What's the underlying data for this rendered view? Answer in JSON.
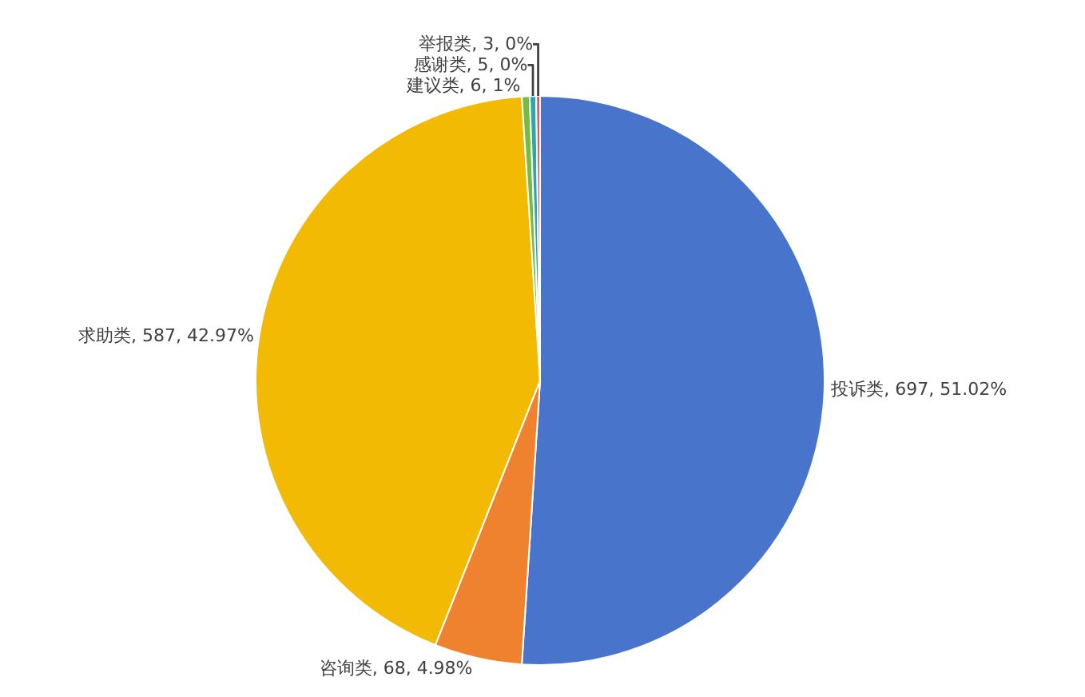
{
  "chart_data": {
    "type": "pie",
    "categories": [
      "投诉类",
      "咨询类",
      "求助类",
      "建议类",
      "感谢类",
      "举报类"
    ],
    "values": [
      697,
      68,
      587,
      6,
      5,
      3
    ],
    "colors": [
      "#4874cb",
      "#ee822f",
      "#f2ba02",
      "#75bd42",
      "#30a5b0",
      "#e8546a"
    ],
    "value_labels": [
      "697, 51.02%",
      "68, 4.98%",
      "587, 42.97%",
      "6, 1%",
      "5, 0%",
      "3, 0%"
    ],
    "legend": false
  }
}
